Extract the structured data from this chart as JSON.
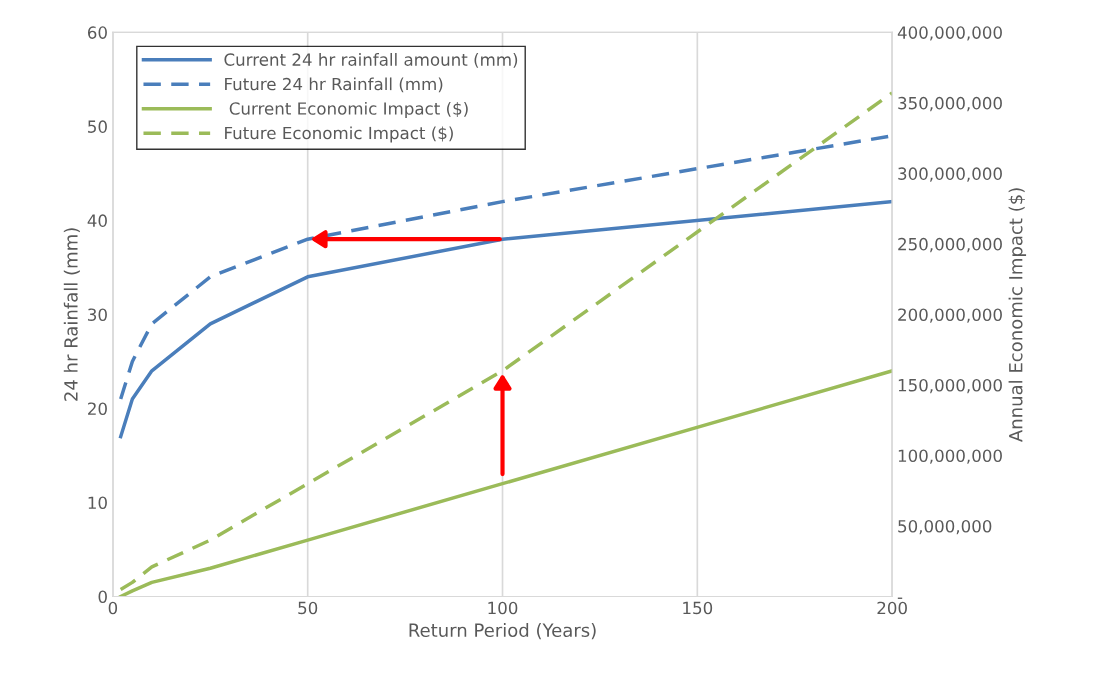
{
  "chart_data": {
    "type": "line",
    "xlabel": "Return Period (Years)",
    "ylabel": "24 hr Rainfall (mm)",
    "y2label": "Annual Economic Impact ($)",
    "x": [
      2,
      5,
      10,
      25,
      50,
      100,
      200
    ],
    "series": [
      {
        "name": "Current 24 hr rainfall amount (mm)",
        "color": "#4a7ebb",
        "line_style": "solid",
        "values": [
          17,
          21,
          24,
          29,
          34,
          38,
          42
        ]
      },
      {
        "name": "Future 24 hr Rainfall (mm)",
        "color": "#4a7ebb",
        "line_style": "dashed",
        "values": [
          21,
          25,
          29,
          34,
          38,
          42,
          49
        ]
      },
      {
        "name": " Current Economic Impact ($)",
        "color": "#9bbb59",
        "line_style": "solid",
        "axis": "y2",
        "values": [
          0,
          4000000,
          10000000,
          20000000,
          40000000,
          80000000,
          160000000
        ]
      },
      {
        "name": "Future Economic Impact ($)",
        "color": "#9bbb59",
        "line_style": "dashed",
        "axis": "y2",
        "values": [
          5000000,
          10000000,
          21000000,
          40000000,
          80000000,
          160000000,
          357000000
        ]
      }
    ],
    "xlim": [
      0,
      200
    ],
    "xticks": [
      0,
      50,
      100,
      150,
      200
    ],
    "ylim": [
      0,
      60
    ],
    "yticks": [
      0,
      10,
      20,
      30,
      40,
      50,
      60
    ],
    "y2lim": [
      0,
      400000000
    ],
    "y2ticks": [
      {
        "value": 0,
        "label": "-"
      },
      {
        "value": 50000000,
        "label": "50,000,000"
      },
      {
        "value": 100000000,
        "label": "100,000,000"
      },
      {
        "value": 150000000,
        "label": "150,000,000"
      },
      {
        "value": 200000000,
        "label": "200,000,000"
      },
      {
        "value": 250000000,
        "label": "250,000,000"
      },
      {
        "value": 300000000,
        "label": "300,000,000"
      },
      {
        "value": 350000000,
        "label": "350,000,000"
      },
      {
        "value": 400000000,
        "label": "400,000,000"
      }
    ],
    "grid": "x",
    "legend": "top left",
    "marker": "none"
  }
}
